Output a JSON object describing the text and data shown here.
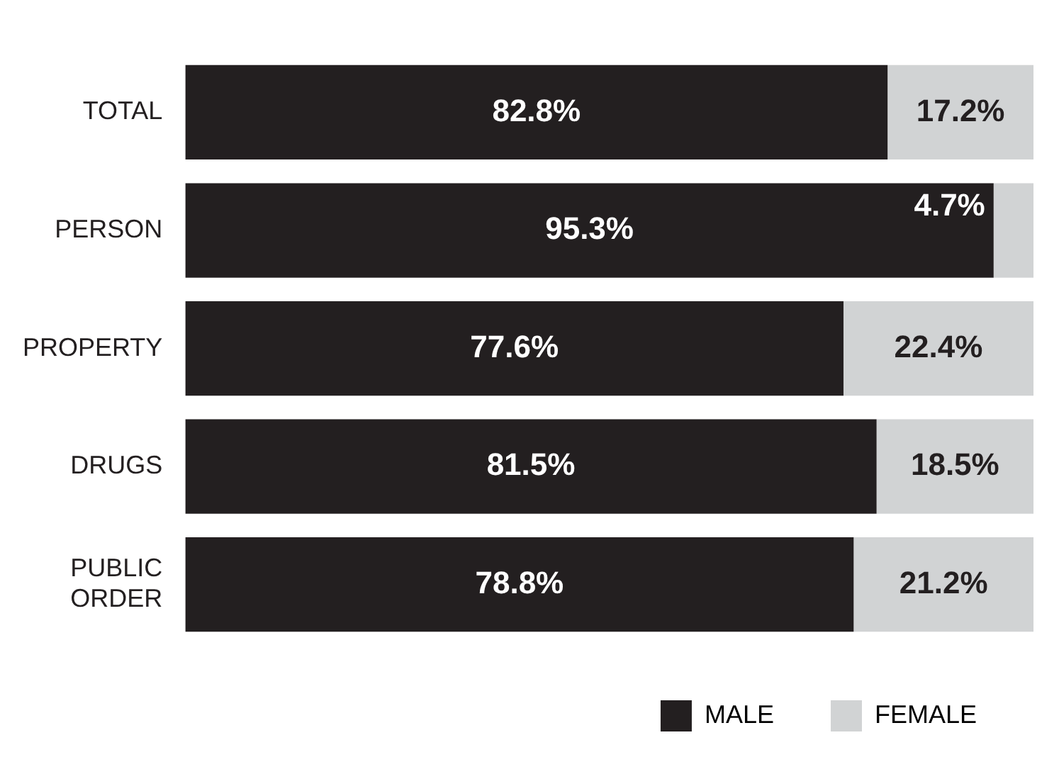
{
  "chart_data": {
    "type": "bar",
    "orientation": "horizontal",
    "stacked": true,
    "categories": [
      "TOTAL",
      "PERSON",
      "PROPERTY",
      "DRUGS",
      "PUBLIC ORDER"
    ],
    "series": [
      {
        "name": "MALE",
        "color": "#231f20",
        "values": [
          82.8,
          95.3,
          77.6,
          81.5,
          78.8
        ],
        "value_labels": [
          "82.8%",
          "95.3%",
          "77.6%",
          "81.5%",
          "78.8%"
        ]
      },
      {
        "name": "FEMALE",
        "color": "#d1d3d4",
        "values": [
          17.2,
          4.7,
          22.4,
          18.5,
          21.2
        ],
        "value_labels": [
          "17.2%",
          "4.7%",
          "22.4%",
          "18.5%",
          "21.2%"
        ]
      }
    ],
    "legend": "bottom right",
    "tick_labels": "y"
  }
}
